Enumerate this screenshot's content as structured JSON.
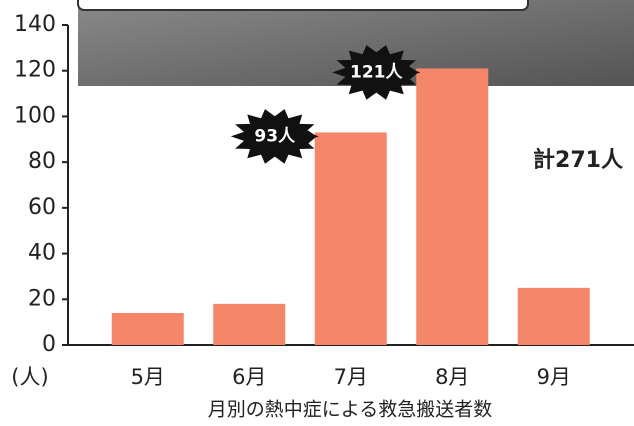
{
  "chart_data": {
    "type": "bar",
    "categories": [
      "5月",
      "6月",
      "7月",
      "8月",
      "9月"
    ],
    "values": [
      14,
      18,
      93,
      121,
      25
    ],
    "value_labels": [
      null,
      null,
      "93人",
      "121人",
      null
    ],
    "color": "#f4866a",
    "ylim": [
      0,
      140
    ],
    "yticks": [
      0,
      20,
      40,
      60,
      80,
      100,
      120,
      140
    ],
    "y_unit": "(人)",
    "x_label": "月別の熱中症による救急搬送者数",
    "annotation": "計271人"
  }
}
